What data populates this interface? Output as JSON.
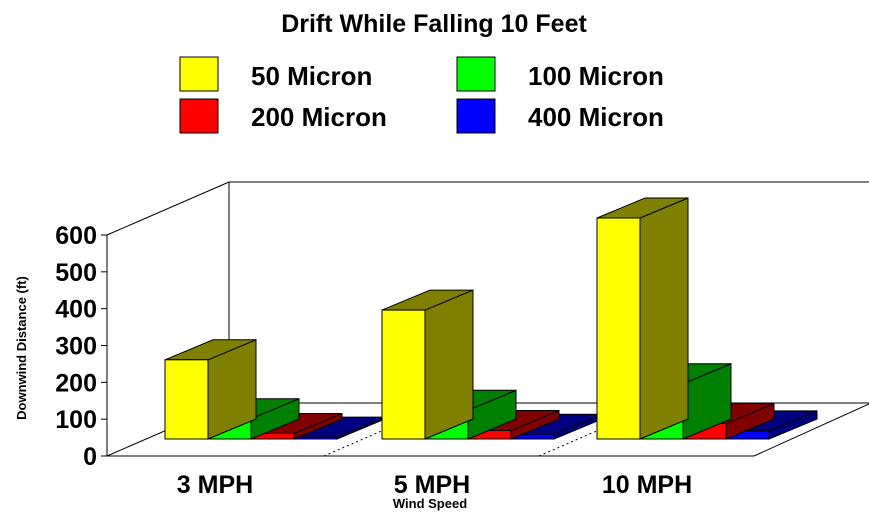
{
  "chart_data": {
    "type": "bar",
    "title": "Drift While Falling 10 Feet",
    "xlabel": "Wind Speed",
    "ylabel": "Downwind Distance (ft)",
    "categories": [
      "3 MPH",
      "5 MPH",
      "10 MPH"
    ],
    "yticks": [
      "0",
      "100",
      "200",
      "300",
      "400",
      "500",
      "600"
    ],
    "ylim": [
      0,
      600
    ],
    "legend_position": "top",
    "grid": false,
    "three_d": true,
    "series": [
      {
        "name": "50 Micron",
        "values": [
          215,
          350,
          600
        ],
        "color": "#ffff00",
        "side_color": "#808000"
      },
      {
        "name": "100 Micron",
        "values": [
          55,
          78,
          150
        ],
        "color": "#00ff00",
        "side_color": "#008000"
      },
      {
        "name": "200 Micron",
        "values": [
          15,
          23,
          42
        ],
        "color": "#ff0000",
        "side_color": "#800000"
      },
      {
        "name": "400 Micron",
        "values": [
          5,
          13,
          22
        ],
        "color": "#0000ff",
        "side_color": "#000080"
      }
    ]
  }
}
